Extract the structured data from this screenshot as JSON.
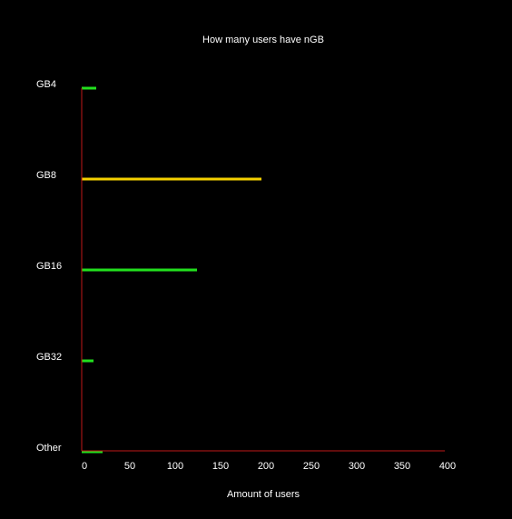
{
  "chart_data": {
    "type": "bar",
    "orientation": "horizontal",
    "title": "How many users have nGB",
    "xlabel": "Amount of users",
    "ylabel": "",
    "categories": [
      "GB4",
      "GB8",
      "GB16",
      "GB32",
      "Other"
    ],
    "values": [
      16,
      198,
      127,
      13,
      23
    ],
    "bar_colors": [
      "#22e01e",
      "#f5d000",
      "#22e01e",
      "#22e01e",
      "#22e01e"
    ],
    "xlim": [
      0,
      400
    ],
    "xticks": [
      "0",
      "50",
      "100",
      "150",
      "200",
      "250",
      "300",
      "350",
      "400"
    ],
    "grid": false,
    "legend": "none",
    "background_color": "#000000",
    "axis_color": "#c01818",
    "text_color": "#ffffff"
  }
}
